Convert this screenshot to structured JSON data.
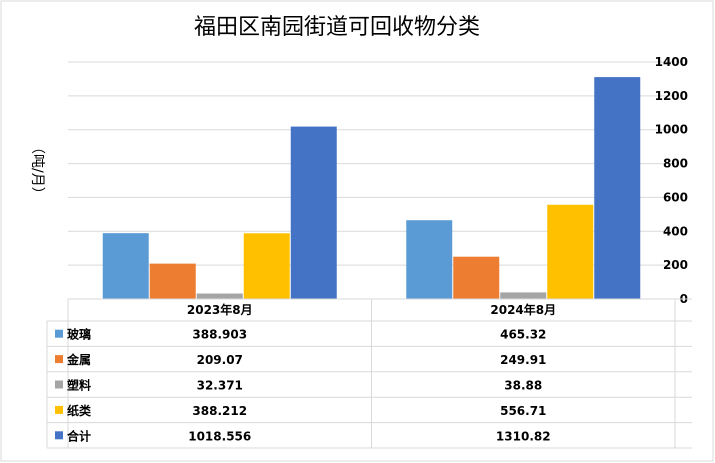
{
  "chart_data": {
    "type": "bar",
    "title": "福田区南园街道可回收物分类",
    "ylabel": "（吨/月）",
    "ylim": [
      0,
      1400
    ],
    "yticks": [
      0,
      200,
      400,
      600,
      800,
      1000,
      1200,
      1400
    ],
    "grid": true,
    "legend": "data-table-left",
    "categories": [
      "2023年8月",
      "2024年8月"
    ],
    "series": [
      {
        "name": "玻璃",
        "color": "#5B9BD5",
        "values": [
          388.903,
          465.32
        ],
        "labels": [
          "388.903",
          "465.32"
        ]
      },
      {
        "name": "金属",
        "color": "#ED7D31",
        "values": [
          209.07,
          249.91
        ],
        "labels": [
          "209.07",
          "249.91"
        ]
      },
      {
        "name": "塑料",
        "color": "#A5A5A5",
        "values": [
          32.371,
          38.88
        ],
        "labels": [
          "32.371",
          "38.88"
        ]
      },
      {
        "name": "纸类",
        "color": "#FFC000",
        "values": [
          388.212,
          556.71
        ],
        "labels": [
          "388.212",
          "556.71"
        ]
      },
      {
        "name": "合计",
        "color": "#4472C4",
        "values": [
          1018.556,
          1310.82
        ],
        "labels": [
          "1018.556",
          "1310.82"
        ]
      }
    ]
  }
}
